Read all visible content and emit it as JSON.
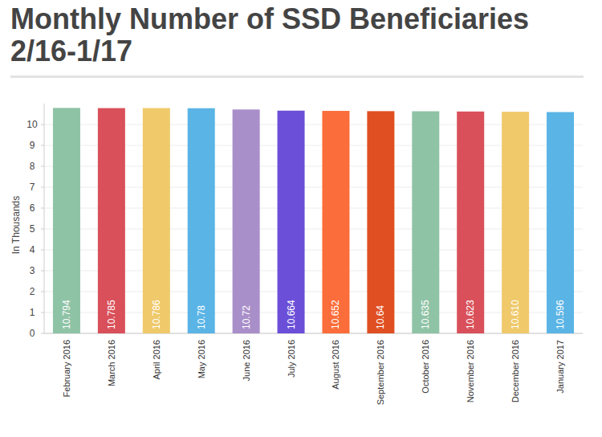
{
  "chart_data": {
    "type": "bar",
    "title": "Monthly Number of SSD Beneficiaries 2/16-1/17",
    "y_label": "In Thousands",
    "categories": [
      "February 2016",
      "March 2016",
      "April 2016",
      "May 2016",
      "June 2016",
      "July 2016",
      "August 2016",
      "September 2016",
      "October 2016",
      "November 2016",
      "December 2016",
      "January 2017"
    ],
    "values": [
      10.794,
      10.785,
      10.786,
      10.78,
      10.72,
      10.664,
      10.652,
      10.64,
      10.635,
      10.623,
      10.61,
      10.596
    ],
    "value_labels": [
      "10.794",
      "10.785",
      "10.786",
      "10.78",
      "10.72",
      "10.664",
      "10.652",
      "10.64",
      "10.635",
      "10.623",
      "10.610",
      "10.596"
    ],
    "colors": [
      "#8fc3a6",
      "#d9505a",
      "#efc96a",
      "#5ab4e5",
      "#a98fc9",
      "#6b4fd8",
      "#fb6d3a",
      "#e04f22",
      "#8fc3a6",
      "#d9505a",
      "#efc96a",
      "#5ab4e5"
    ],
    "ylim": [
      0,
      11
    ],
    "yticks": [
      0,
      1,
      2,
      3,
      4,
      5,
      6,
      7,
      8,
      9,
      10
    ],
    "grid": true,
    "data_labels": true
  }
}
